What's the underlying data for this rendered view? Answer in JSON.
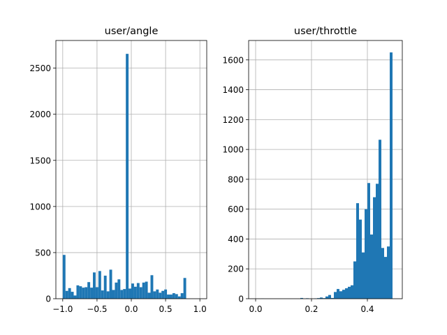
{
  "chart_data": [
    {
      "type": "bar",
      "title": "user/angle",
      "xlabel": "",
      "ylabel": "",
      "xlim": [
        -1.1,
        1.1
      ],
      "ylim": [
        0,
        2800
      ],
      "xticks": [
        -1.0,
        -0.5,
        0.0,
        0.5,
        1.0
      ],
      "xtick_labels": [
        "−1.0",
        "−0.5",
        "0.0",
        "0.5",
        "1.0"
      ],
      "yticks": [
        0,
        500,
        1000,
        1500,
        2000,
        2500
      ],
      "ytick_labels": [
        "0",
        "500",
        "1000",
        "1500",
        "2000",
        "2500"
      ],
      "grid": true,
      "color": "#1f77b4",
      "bin_start": -1.0,
      "bin_width": 0.04,
      "values": [
        475,
        85,
        115,
        75,
        35,
        145,
        135,
        120,
        125,
        180,
        120,
        285,
        125,
        300,
        90,
        250,
        80,
        315,
        95,
        175,
        210,
        95,
        105,
        2655,
        110,
        165,
        130,
        170,
        125,
        175,
        185,
        65,
        255,
        80,
        100,
        65,
        85,
        100,
        45,
        45,
        60,
        50,
        25,
        60,
        225
      ]
    },
    {
      "type": "bar",
      "title": "user/throttle",
      "xlabel": "",
      "ylabel": "",
      "xlim": [
        -0.025,
        0.525
      ],
      "ylim": [
        0,
        1730
      ],
      "xticks": [
        0.0,
        0.2,
        0.4
      ],
      "xtick_labels": [
        "0.0",
        "0.2",
        "0.4"
      ],
      "yticks": [
        0,
        200,
        400,
        600,
        800,
        1000,
        1200,
        1400,
        1600
      ],
      "ytick_labels": [
        "0",
        "200",
        "400",
        "600",
        "800",
        "1000",
        "1200",
        "1400",
        "1600"
      ],
      "grid": true,
      "color": "#1f77b4",
      "bin_start": 0.0,
      "bin_width": 0.01,
      "values": [
        0,
        0,
        1,
        0,
        0,
        0,
        0,
        0,
        0,
        0,
        0,
        0,
        0,
        0,
        0,
        0,
        5,
        0,
        3,
        0,
        0,
        2,
        4,
        8,
        4,
        15,
        25,
        5,
        45,
        65,
        50,
        60,
        70,
        80,
        90,
        250,
        640,
        530,
        310,
        600,
        775,
        430,
        680,
        770,
        1065,
        340,
        280,
        350,
        1650
      ]
    }
  ]
}
